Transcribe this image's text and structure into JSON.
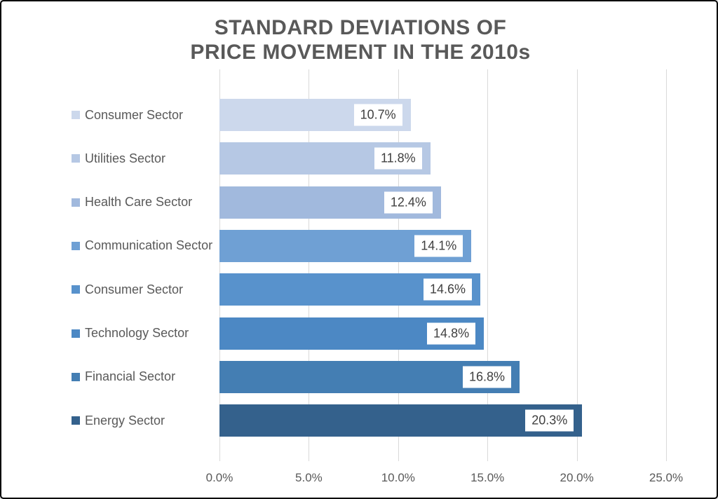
{
  "chart_data": {
    "type": "bar",
    "orientation": "horizontal",
    "title_line1": "STANDARD DEVIATIONS OF",
    "title_line2": "PRICE MOVEMENT IN THE 2010s",
    "categories": [
      "Consumer Sector",
      "Utilities Sector",
      "Health Care Sector",
      "Communication Sector",
      "Consumer Sector",
      "Technology Sector",
      "Financial Sector",
      "Energy Sector"
    ],
    "values": [
      10.7,
      11.8,
      12.4,
      14.1,
      14.6,
      14.8,
      16.8,
      20.3
    ],
    "value_labels": [
      "10.7%",
      "11.8%",
      "12.4%",
      "14.1%",
      "14.6%",
      "14.8%",
      "16.8%",
      "20.3%"
    ],
    "bar_colors": [
      "#ccd8ec",
      "#b6c8e4",
      "#a1b9dd",
      "#6fa0d4",
      "#5892cc",
      "#4c88c4",
      "#447eb3",
      "#34618c"
    ],
    "x_ticks": [
      "0.0%",
      "5.0%",
      "10.0%",
      "15.0%",
      "20.0%",
      "25.0%"
    ],
    "x_tick_values": [
      0,
      5,
      10,
      15,
      20,
      25
    ],
    "xlim": [
      0,
      25
    ],
    "grid": true,
    "legend_position": "left-of-bars",
    "colors": {
      "title_text": "#595959",
      "axis_text": "#595959",
      "value_text": "#404040",
      "gridline": "#d9d9d9",
      "background": "#ffffff",
      "frame_border": "#000000"
    }
  }
}
